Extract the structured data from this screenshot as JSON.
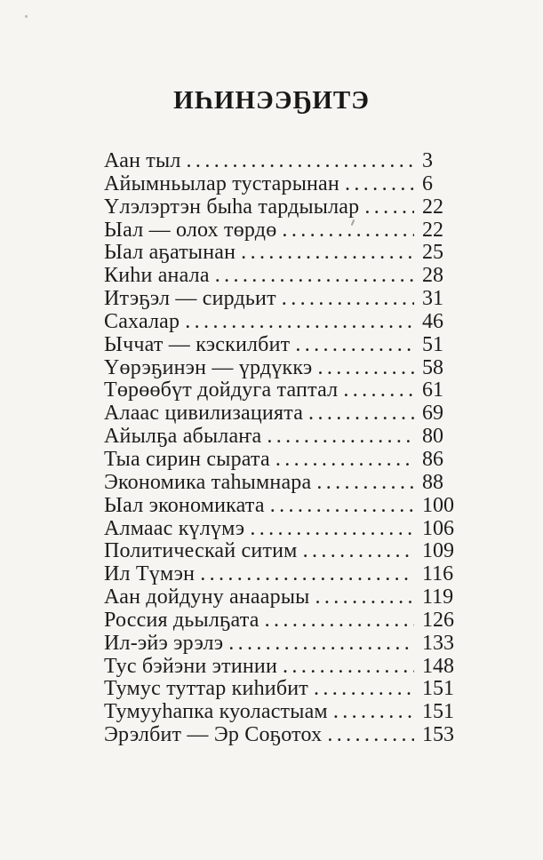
{
  "title": "ИҺИНЭЭҔИТЭ",
  "toc": {
    "entries": [
      {
        "label": "Аан тыл",
        "page": "3"
      },
      {
        "label": "Айымньылар тустарынан",
        "page": "6"
      },
      {
        "label": "Үлэлэртэн быһа тардыылар",
        "page": "22"
      },
      {
        "label": "Ыал — олох төрдө",
        "page": "22"
      },
      {
        "label": "Ыал аҕатынан",
        "page": "25"
      },
      {
        "label": "Киһи анала",
        "page": "28"
      },
      {
        "label": "Итэҕэл — сирдьит",
        "page": "31"
      },
      {
        "label": "Сахалар",
        "page": "46"
      },
      {
        "label": "Ыччат — кэскилбит",
        "page": "51"
      },
      {
        "label": "Үөрэҕинэн — үрдүккэ",
        "page": "58"
      },
      {
        "label": "Төрөөбүт дойдуга таптал",
        "page": "61"
      },
      {
        "label": "Алаас цивилизацията",
        "page": "69"
      },
      {
        "label": "Айылҕа абылаҥа",
        "page": "80"
      },
      {
        "label": "Тыа сирин сырата",
        "page": "86"
      },
      {
        "label": "Экономика таһымнара",
        "page": "88"
      },
      {
        "label": "Ыал экономиката",
        "page": "100"
      },
      {
        "label": "Алмаас күлүмэ",
        "page": "106"
      },
      {
        "label": "Политическай ситим",
        "page": "109"
      },
      {
        "label": "Ил Түмэн",
        "page": "116"
      },
      {
        "label": "Аан дойдуну анаарыы",
        "page": "119"
      },
      {
        "label": "Россия дьылҕата",
        "page": "126"
      },
      {
        "label": "Ил-эйэ эрэлэ",
        "page": "133"
      },
      {
        "label": "Тус бэйэни этинии",
        "page": "148"
      },
      {
        "label": "Тумус туттар киһибит",
        "page": "151"
      },
      {
        "label": "Тумууһапка куоластыам",
        "page": "151"
      },
      {
        "label": "Эрэлбит — Эр Соҕотох",
        "page": "153"
      }
    ]
  },
  "colors": {
    "paper_background": "#f6f5f2",
    "ink_text": "#1d1c1a"
  }
}
